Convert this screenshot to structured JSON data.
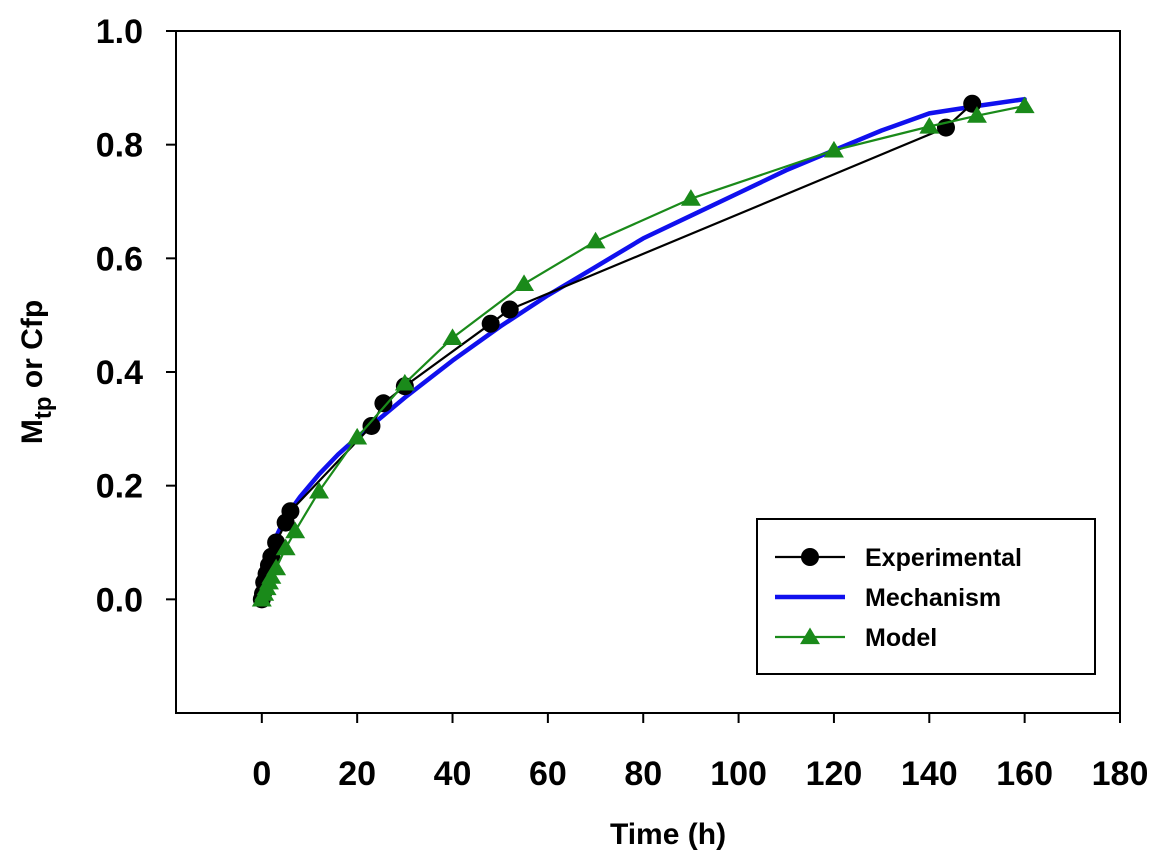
{
  "chart_data": {
    "type": "line",
    "xlabel": "Time (h)",
    "ylabel": {
      "main": "M",
      "sub": "tp",
      "rest": " or Cfp"
    },
    "xlim": [
      -18,
      180
    ],
    "ylim": [
      -0.2,
      1.0
    ],
    "xticks": [
      0,
      20,
      40,
      60,
      80,
      100,
      120,
      140,
      160,
      180
    ],
    "yticks": [
      0.0,
      0.2,
      0.4,
      0.6,
      0.8,
      1.0
    ],
    "xtick_labels": [
      "0",
      "20",
      "40",
      "60",
      "80",
      "100",
      "120",
      "140",
      "160",
      "180"
    ],
    "ytick_labels": [
      "0.0",
      "0.2",
      "0.4",
      "0.6",
      "0.8",
      "1.0"
    ],
    "grid": false,
    "legend_position": "bottom-right",
    "series": [
      {
        "name": "Experimental",
        "color": "#000000",
        "marker": "circle",
        "x": [
          0,
          0.25,
          0.5,
          1,
          1.5,
          2,
          3,
          5,
          6,
          23,
          25.5,
          30,
          48,
          52,
          143.5,
          149
        ],
        "y": [
          0.0,
          0.01,
          0.03,
          0.045,
          0.06,
          0.075,
          0.1,
          0.135,
          0.155,
          0.305,
          0.345,
          0.375,
          0.485,
          0.51,
          0.83,
          0.872
        ]
      },
      {
        "name": "Mechanism",
        "color": "#1010ee",
        "marker": "none",
        "x": [
          0,
          0.5,
          1,
          2,
          3,
          5,
          8,
          12,
          16,
          20,
          25,
          30,
          40,
          50,
          60,
          70,
          80,
          90,
          100,
          110,
          120,
          130,
          140,
          150,
          160
        ],
        "y": [
          0.0,
          0.04,
          0.06,
          0.09,
          0.11,
          0.145,
          0.18,
          0.22,
          0.255,
          0.285,
          0.32,
          0.355,
          0.42,
          0.48,
          0.535,
          0.585,
          0.635,
          0.675,
          0.715,
          0.755,
          0.79,
          0.825,
          0.855,
          0.868,
          0.88
        ]
      },
      {
        "name": "Model",
        "color": "#1a8a1a",
        "marker": "triangle",
        "x": [
          0,
          0.5,
          1,
          1.5,
          2,
          3,
          5,
          7,
          12,
          20,
          30,
          40,
          55,
          70,
          90,
          120,
          140,
          150,
          160
        ],
        "y": [
          0.0,
          0.01,
          0.02,
          0.03,
          0.04,
          0.055,
          0.09,
          0.12,
          0.19,
          0.285,
          0.38,
          0.46,
          0.555,
          0.63,
          0.705,
          0.79,
          0.832,
          0.851,
          0.868
        ]
      }
    ]
  }
}
